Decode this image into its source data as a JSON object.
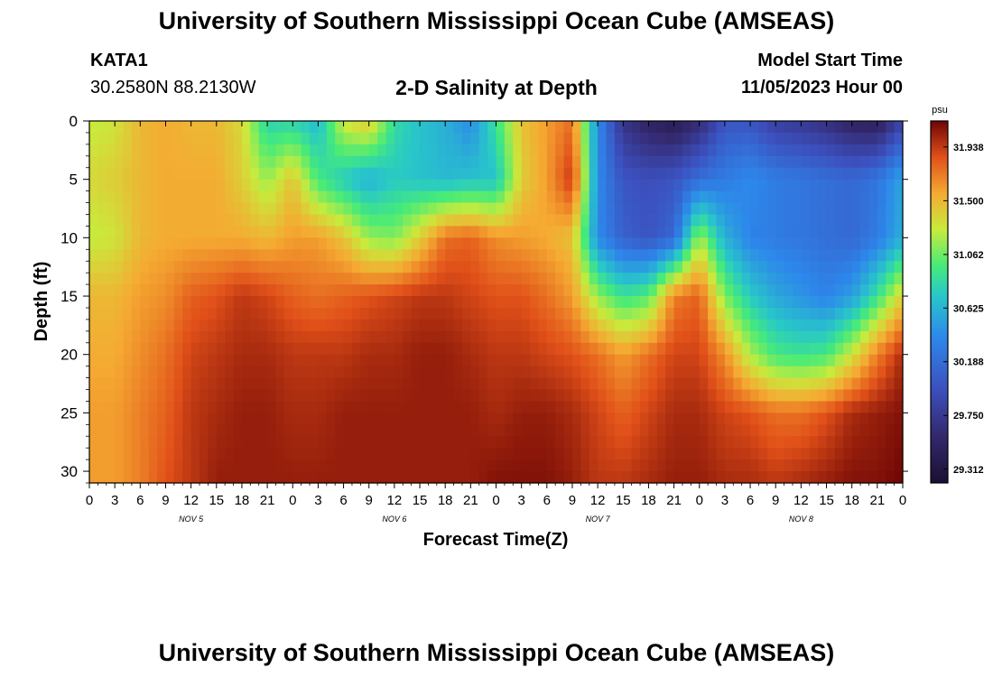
{
  "header": {
    "title": "University of Southern Mississippi Ocean Cube (AMSEAS)",
    "station": "KATA1",
    "coords": "30.2580N  88.2130W",
    "subtitle": "2-D Salinity at Depth",
    "model_start_label": "Model Start Time",
    "model_start_value": "11/05/2023 Hour 00"
  },
  "footer": {
    "title": "University of Southern Mississippi Ocean Cube (AMSEAS)"
  },
  "chart_data": {
    "type": "heatmap",
    "title": "2-D Salinity at Depth",
    "xlabel": "Forecast Time(Z)",
    "ylabel": "Depth (ft)",
    "x_ticks": [
      "0",
      "3",
      "6",
      "9",
      "12",
      "15",
      "18",
      "21",
      "0",
      "3",
      "6",
      "9",
      "12",
      "15",
      "18",
      "21",
      "0",
      "3",
      "6",
      "9",
      "12",
      "15",
      "18",
      "21",
      "0",
      "3",
      "6",
      "9",
      "12",
      "15",
      "18",
      "21",
      "0"
    ],
    "day_labels": [
      "NOV 5",
      "NOV 6",
      "NOV 7",
      "NOV 8"
    ],
    "x_range_hours": [
      0,
      96
    ],
    "y_ticks": [
      0,
      5,
      10,
      15,
      20,
      25,
      30
    ],
    "y_range_ft": [
      0,
      31
    ],
    "colorbar": {
      "unit": "psu",
      "ticks": [
        "31.938",
        "31.500",
        "31.062",
        "30.625",
        "30.188",
        "29.750",
        "29.312"
      ],
      "min": 29.2,
      "max": 32.15
    },
    "time_hours": [
      0,
      3,
      6,
      9,
      12,
      15,
      18,
      21,
      24,
      27,
      30,
      33,
      36,
      39,
      42,
      45,
      48,
      51,
      54,
      57,
      60,
      63,
      66,
      69,
      72,
      75,
      78,
      81,
      84,
      87,
      90,
      93,
      96
    ],
    "depths_ft": [
      0,
      5,
      10,
      15,
      20,
      25,
      31
    ],
    "salinity_psu": [
      [
        31.25,
        31.3,
        31.5,
        31.55,
        31.5,
        31.5,
        31.35,
        30.8,
        30.8,
        30.65,
        31.3,
        31.45,
        30.85,
        30.7,
        30.6,
        30.4,
        30.9,
        31.45,
        31.6,
        31.75,
        30.4,
        29.7,
        29.5,
        29.4,
        29.6,
        30.0,
        30.0,
        29.8,
        29.75,
        29.65,
        29.5,
        29.45,
        29.85
      ],
      [
        31.35,
        31.4,
        31.5,
        31.55,
        31.55,
        31.55,
        31.4,
        31.15,
        31.45,
        30.95,
        30.75,
        30.6,
        30.75,
        30.7,
        30.65,
        30.7,
        30.7,
        31.4,
        31.6,
        31.95,
        30.4,
        30.0,
        29.95,
        30.0,
        30.2,
        30.3,
        30.4,
        30.3,
        30.25,
        30.2,
        30.15,
        30.25,
        30.55
      ],
      [
        31.25,
        31.3,
        31.5,
        31.55,
        31.55,
        31.55,
        31.55,
        31.5,
        31.6,
        31.6,
        31.45,
        31.15,
        31.1,
        31.4,
        31.75,
        31.8,
        31.65,
        31.6,
        31.55,
        31.45,
        30.4,
        30.1,
        30.0,
        30.15,
        31.2,
        30.6,
        30.35,
        30.3,
        30.25,
        30.2,
        30.15,
        30.3,
        30.6
      ],
      [
        31.5,
        31.5,
        31.6,
        31.65,
        31.8,
        31.85,
        31.95,
        31.9,
        31.8,
        31.75,
        31.8,
        31.85,
        31.9,
        31.95,
        31.95,
        31.9,
        31.85,
        31.85,
        31.75,
        31.6,
        31.15,
        30.9,
        31.0,
        31.7,
        31.8,
        31.1,
        30.75,
        30.55,
        30.45,
        30.35,
        30.5,
        30.9,
        31.4
      ],
      [
        31.55,
        31.55,
        31.65,
        31.75,
        31.9,
        31.95,
        32.0,
        32.0,
        31.95,
        31.95,
        31.95,
        32.0,
        32.0,
        32.05,
        32.05,
        32.0,
        31.95,
        31.95,
        31.9,
        31.85,
        31.75,
        31.6,
        31.75,
        31.9,
        31.9,
        31.65,
        31.2,
        30.95,
        30.9,
        30.95,
        31.3,
        31.7,
        32.0
      ],
      [
        31.6,
        31.6,
        31.7,
        31.8,
        31.95,
        32.0,
        32.05,
        32.05,
        32.0,
        32.0,
        32.05,
        32.05,
        32.05,
        32.05,
        32.05,
        32.05,
        32.0,
        32.05,
        32.05,
        32.0,
        31.9,
        31.8,
        31.9,
        32.0,
        32.0,
        31.9,
        31.85,
        31.75,
        31.75,
        31.85,
        32.0,
        32.05,
        32.1
      ],
      [
        31.6,
        31.6,
        31.7,
        31.85,
        31.95,
        32.05,
        32.05,
        32.05,
        32.05,
        32.05,
        32.05,
        32.05,
        32.05,
        32.05,
        32.05,
        32.05,
        32.1,
        32.1,
        32.1,
        32.05,
        31.95,
        31.95,
        32.0,
        32.05,
        32.05,
        32.0,
        32.0,
        31.95,
        32.0,
        32.05,
        32.1,
        32.1,
        32.15
      ]
    ]
  }
}
